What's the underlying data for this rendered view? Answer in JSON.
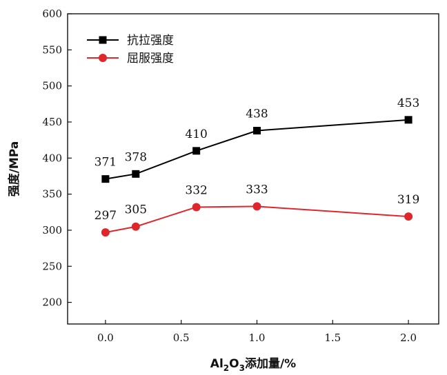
{
  "chart_data": {
    "type": "line",
    "title": "",
    "xlabel": "Al2O3添加量/%",
    "xlabel_parts": {
      "prefix": "Al",
      "sub1": "2",
      "mid": "O",
      "sub2": "3",
      "suffix": "添加量/%"
    },
    "ylabel": "强度/MPa",
    "xlim": [
      -0.25,
      2.2
    ],
    "ylim": [
      170,
      600
    ],
    "x_ticks": [
      0.0,
      0.5,
      1.0,
      1.5,
      2.0
    ],
    "x_tick_labels": [
      "0.0",
      "0.5",
      "1.0",
      "1.5",
      "2.0"
    ],
    "y_ticks": [
      200,
      250,
      300,
      350,
      400,
      450,
      500,
      550,
      600
    ],
    "y_tick_labels": [
      "200",
      "250",
      "300",
      "350",
      "400",
      "450",
      "500",
      "550",
      "600"
    ],
    "grid": false,
    "legend_position": "top-left",
    "x": [
      0.0,
      0.2,
      0.6,
      1.0,
      2.0
    ],
    "series": [
      {
        "name": "抗拉强度",
        "color": "#000000",
        "marker": "square",
        "values": [
          371,
          378,
          410,
          438,
          453
        ],
        "labels": [
          "371",
          "378",
          "410",
          "438",
          "453"
        ]
      },
      {
        "name": "屈服强度",
        "color": "#e0262b",
        "marker": "circle",
        "values": [
          297,
          305,
          332,
          333,
          319
        ],
        "labels": [
          "297",
          "305",
          "332",
          "333",
          "319"
        ]
      }
    ]
  }
}
